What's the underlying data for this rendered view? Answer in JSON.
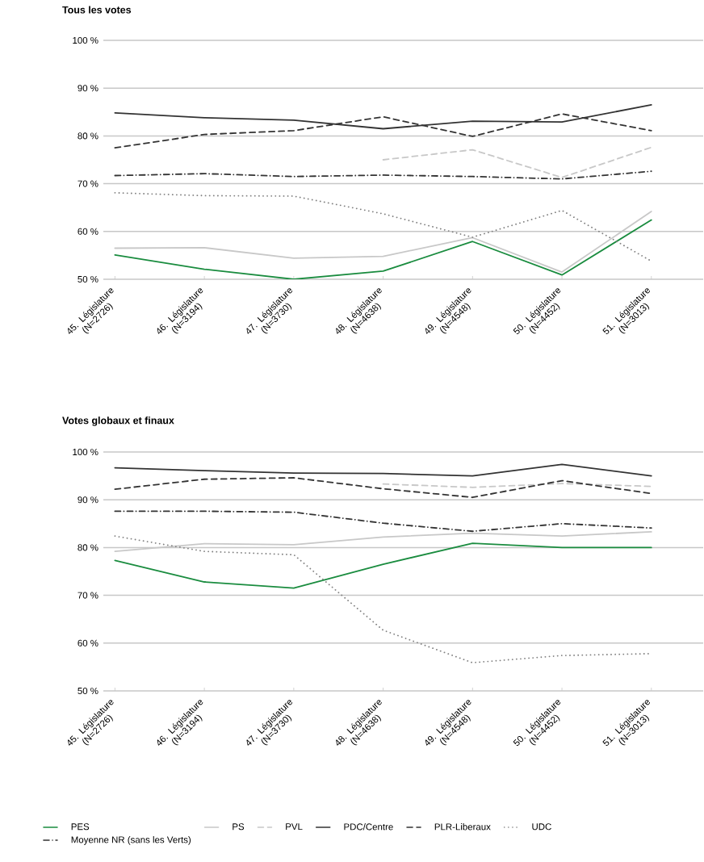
{
  "chart_data": [
    {
      "type": "line",
      "title": "Tous les votes",
      "categories": [
        "45. Législature (N=2726)",
        "46. Législature (N=3194)",
        "47. Législature (N=3730)",
        "48. Législature (N=4638)",
        "49. Législature (N=4548)",
        "50. Législature (N=4452)",
        "51. Législature (N=3013)"
      ],
      "ylim": [
        50,
        100
      ],
      "yticks": [
        {
          "value": 50,
          "label": "50 %"
        },
        {
          "value": 60,
          "label": "60 %"
        },
        {
          "value": 70,
          "label": "70 %"
        },
        {
          "value": 80,
          "label": "80 %"
        },
        {
          "value": 90,
          "label": "90 %"
        },
        {
          "value": 100,
          "label": "100 %"
        }
      ],
      "grid": "y",
      "series": [
        {
          "color": "#1a8c3f",
          "line_style": "solid",
          "values": [
            55.1,
            52.1,
            50.0,
            51.7,
            57.9,
            50.9,
            62.4
          ]
        },
        {
          "color": "#c8c8c8",
          "line_style": "solid",
          "values": [
            56.5,
            56.6,
            54.4,
            54.8,
            58.7,
            51.5,
            64.2
          ]
        },
        {
          "color": "#c8c8c8",
          "line_style": "dashed",
          "values": [
            null,
            null,
            null,
            75.0,
            77.1,
            71.3,
            77.6
          ]
        },
        {
          "color": "#333333",
          "line_style": "solid",
          "values": [
            84.8,
            83.8,
            83.3,
            81.5,
            83.1,
            82.9,
            86.5
          ]
        },
        {
          "color": "#333333",
          "line_style": "dashed",
          "values": [
            77.5,
            80.3,
            81.1,
            84.0,
            79.9,
            84.6,
            81.1
          ]
        },
        {
          "color": "#808080",
          "line_style": "dotted",
          "values": [
            68.1,
            67.5,
            67.4,
            63.7,
            58.8,
            64.4,
            53.8
          ]
        },
        {
          "color": "#333333",
          "line_style": "dashdot",
          "values": [
            71.7,
            72.1,
            71.5,
            71.8,
            71.5,
            71.0,
            72.6
          ]
        }
      ]
    },
    {
      "type": "line",
      "title": "Votes globaux et finaux",
      "categories": [
        "45. Législature (N=2726)",
        "46. Législature (N=3194)",
        "47. Législature (N=3730)",
        "48. Législature (N=4638)",
        "49. Législature (N=4548)",
        "50. Législature (N=4452)",
        "51. Législature (N=3013)"
      ],
      "ylim": [
        50,
        100
      ],
      "yticks": [
        {
          "value": 50,
          "label": "50 %"
        },
        {
          "value": 60,
          "label": "60 %"
        },
        {
          "value": 70,
          "label": "70 %"
        },
        {
          "value": 80,
          "label": "80 %"
        },
        {
          "value": 90,
          "label": "90 %"
        },
        {
          "value": 100,
          "label": "100 %"
        }
      ],
      "grid": "y",
      "legend": "bottom",
      "series": [
        {
          "name": "PES",
          "color": "#1a8c3f",
          "line_style": "solid",
          "values": [
            77.3,
            72.8,
            71.5,
            76.5,
            80.9,
            80.0,
            80.0
          ]
        },
        {
          "name": "PS",
          "color": "#c8c8c8",
          "line_style": "solid",
          "values": [
            79.2,
            80.8,
            80.6,
            82.2,
            83.0,
            82.4,
            83.3
          ]
        },
        {
          "name": "PVL",
          "color": "#c8c8c8",
          "line_style": "dashed",
          "values": [
            null,
            null,
            null,
            93.3,
            92.6,
            93.4,
            92.8
          ]
        },
        {
          "name": "PDC/Centre",
          "color": "#333333",
          "line_style": "solid",
          "values": [
            96.7,
            96.1,
            95.6,
            95.5,
            95.0,
            97.4,
            95.0
          ]
        },
        {
          "name": "PLR-Liberaux",
          "color": "#333333",
          "line_style": "dashed",
          "values": [
            92.2,
            94.3,
            94.6,
            92.3,
            90.5,
            94.0,
            91.3
          ]
        },
        {
          "name": "UDC",
          "color": "#808080",
          "line_style": "dotted",
          "values": [
            82.4,
            79.2,
            78.5,
            62.7,
            55.9,
            57.4,
            57.8
          ]
        },
        {
          "name": "Moyenne NR (sans les Verts)",
          "color": "#333333",
          "line_style": "dashdot",
          "values": [
            87.6,
            87.6,
            87.4,
            85.1,
            83.4,
            85.0,
            84.1
          ]
        }
      ]
    }
  ]
}
